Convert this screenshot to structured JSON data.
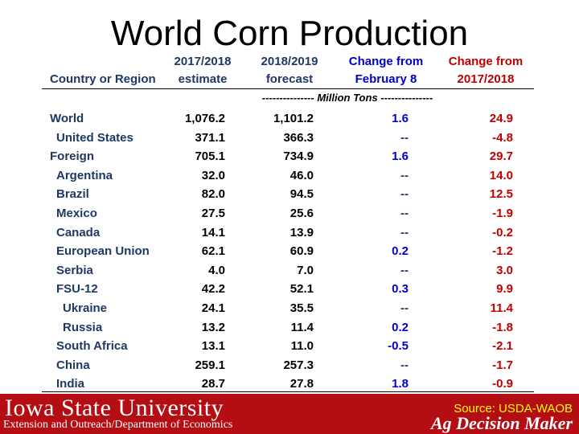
{
  "title": "World Corn Production",
  "table": {
    "headers": {
      "country": "Country or Region",
      "col1_line1": "2017/2018",
      "col1_line2": "estimate",
      "col2_line1": "2018/2019",
      "col2_line2": "forecast",
      "col3_line1": "Change from",
      "col3_line2": "February 8",
      "col4_line1": "Change from",
      "col4_line2": "2017/2018"
    },
    "units": "--------------- Million Tons ---------------",
    "rows": [
      {
        "name": "World",
        "estimate": "1,076.2",
        "forecast": "1,101.2",
        "change_feb": "1.6",
        "change_prev": "24.9"
      },
      {
        "name": "United States",
        "estimate": "371.1",
        "forecast": "366.3",
        "change_feb": "--",
        "change_prev": "-4.8"
      },
      {
        "name": "Foreign",
        "estimate": "705.1",
        "forecast": "734.9",
        "change_feb": "1.6",
        "change_prev": "29.7"
      },
      {
        "name": "Argentina",
        "estimate": "32.0",
        "forecast": "46.0",
        "change_feb": "--",
        "change_prev": "14.0"
      },
      {
        "name": "Brazil",
        "estimate": "82.0",
        "forecast": "94.5",
        "change_feb": "--",
        "change_prev": "12.5"
      },
      {
        "name": "Mexico",
        "estimate": "27.5",
        "forecast": "25.6",
        "change_feb": "--",
        "change_prev": "-1.9"
      },
      {
        "name": "Canada",
        "estimate": "14.1",
        "forecast": "13.9",
        "change_feb": "--",
        "change_prev": "-0.2"
      },
      {
        "name": "European Union",
        "estimate": "62.1",
        "forecast": "60.9",
        "change_feb": "0.2",
        "change_prev": "-1.2"
      },
      {
        "name": "Serbia",
        "estimate": "4.0",
        "forecast": "7.0",
        "change_feb": "--",
        "change_prev": "3.0"
      },
      {
        "name": "FSU-12",
        "estimate": "42.2",
        "forecast": "52.1",
        "change_feb": "0.3",
        "change_prev": "9.9"
      },
      {
        "name": "Ukraine",
        "estimate": "24.1",
        "forecast": "35.5",
        "change_feb": "--",
        "change_prev": "11.4"
      },
      {
        "name": "Russia",
        "estimate": "13.2",
        "forecast": "11.4",
        "change_feb": "0.2",
        "change_prev": "-1.8"
      },
      {
        "name": "South Africa",
        "estimate": "13.1",
        "forecast": "11.0",
        "change_feb": "-0.5",
        "change_prev": "-2.1"
      },
      {
        "name": "China",
        "estimate": "259.1",
        "forecast": "257.3",
        "change_feb": "--",
        "change_prev": "-1.7"
      },
      {
        "name": "India",
        "estimate": "28.7",
        "forecast": "27.8",
        "change_feb": "1.8",
        "change_prev": "-0.9"
      }
    ]
  },
  "footer": {
    "university": "Iowa State University",
    "department": "Extension and Outreach/Department of Economics",
    "source": "Source: USDA-WAOB",
    "brand": "Ag Decision Maker"
  },
  "colors": {
    "footer_bg": "#b50d14",
    "header_navy": "#1f3864",
    "change_feb": "#0000cc",
    "change_prev": "#c00000",
    "source_text": "#ffff00"
  }
}
